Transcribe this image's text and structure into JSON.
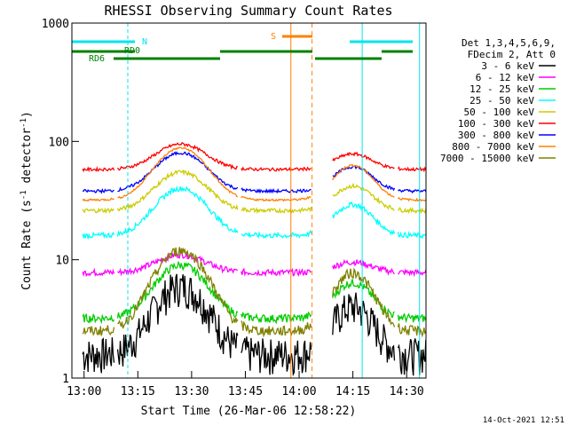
{
  "chart_data": {
    "type": "line",
    "title": "RHESSI Observing Summary Count Rates",
    "xlabel": "Start Time (26-Mar-06 12:58:22)",
    "ylabel": "Count Rate (s",
    "ylabel_sup": "-1",
    "ylabel_tail": " detector",
    "ylabel_close": ")",
    "yscale": "log",
    "ylim": [
      1,
      1000
    ],
    "xlim_minutes": [
      -3.4,
      95.4
    ],
    "xticks": [
      {
        "t": 0,
        "label": "13:00"
      },
      {
        "t": 15,
        "label": "13:15"
      },
      {
        "t": 30,
        "label": "13:30"
      },
      {
        "t": 45,
        "label": "13:45"
      },
      {
        "t": 60,
        "label": "14:00"
      },
      {
        "t": 75,
        "label": "14:15"
      },
      {
        "t": 90,
        "label": "14:30"
      }
    ],
    "yticks": [
      {
        "v": 1,
        "label": "1"
      },
      {
        "v": 10,
        "label": "10"
      },
      {
        "v": 100,
        "label": "100"
      },
      {
        "v": 1000,
        "label": "1000"
      }
    ],
    "legend": {
      "placement": "right",
      "header": [
        "Det 1,3,4,5,6,9,",
        "FDecim 2, Att 0"
      ]
    },
    "series": [
      {
        "name": "3 - 6 keV",
        "color": "#000000",
        "base": 1.6,
        "peak": 6,
        "noise": 0.35
      },
      {
        "name": "6 - 12 keV",
        "color": "#ff00ff",
        "base": 7.8,
        "peak": 11,
        "noise": 0.06
      },
      {
        "name": "12 - 25 keV",
        "color": "#00cc00",
        "base": 3.2,
        "peak": 9,
        "noise": 0.08
      },
      {
        "name": "25 - 50 keV",
        "color": "#00ffff",
        "base": 16,
        "peak": 40,
        "noise": 0.05
      },
      {
        "name": "50 - 100 keV",
        "color": "#cccc00",
        "base": 26,
        "peak": 55,
        "noise": 0.04
      },
      {
        "name": "100 - 300 keV",
        "color": "#ff0000",
        "base": 58,
        "peak": 95,
        "noise": 0.03
      },
      {
        "name": "300 - 800 keV",
        "color": "#0000ff",
        "base": 38,
        "peak": 80,
        "noise": 0.03
      },
      {
        "name": "800 - 7000 keV",
        "color": "#ff8000",
        "base": 32,
        "peak": 88,
        "noise": 0.02
      },
      {
        "name": "7000 - 15000 keV",
        "color": "#808000",
        "base": 2.5,
        "peak": 12,
        "noise": 0.1
      }
    ],
    "data_gaps_minutes": [
      [
        -3.4,
        -0.5
      ],
      [
        8.5,
        9.2
      ],
      [
        43.0,
        43.8
      ],
      [
        63.6,
        69.2
      ],
      [
        86.8,
        87.4
      ]
    ],
    "annotations": [
      {
        "text": "N",
        "color": "#00e5ee"
      },
      {
        "text": "RD0",
        "color": "#008000"
      },
      {
        "text": "RD6",
        "color": "#008000"
      },
      {
        "text": "S",
        "color": "#ff8000"
      }
    ],
    "footer_date": "14-Oct-2021 12:51"
  }
}
